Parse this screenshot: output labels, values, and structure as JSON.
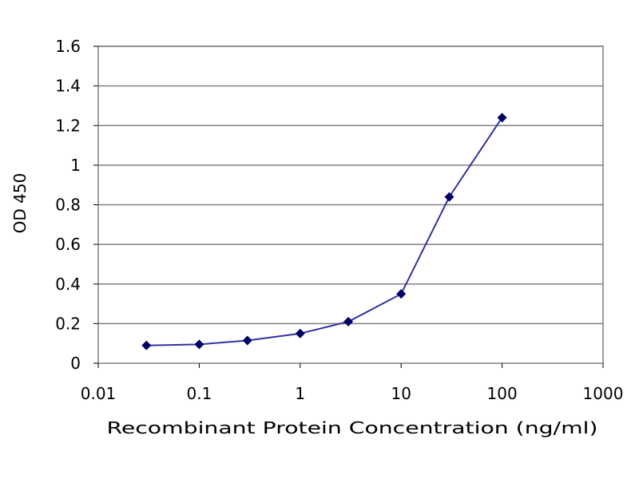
{
  "chart_data": {
    "type": "line",
    "xlabel": "Recombinant Protein Concentration (ng/ml)",
    "ylabel": "OD 450",
    "x_scale": "log",
    "xlim": [
      0.01,
      1000
    ],
    "ylim": [
      0,
      1.6
    ],
    "x_ticks": [
      0.01,
      0.1,
      1,
      10,
      100,
      1000
    ],
    "x_tick_labels": [
      "0.01",
      "0.1",
      "1",
      "10",
      "100",
      "1000"
    ],
    "y_ticks": [
      0,
      0.2,
      0.4,
      0.6,
      0.8,
      1,
      1.2,
      1.4,
      1.6
    ],
    "y_tick_labels": [
      "0",
      "0.2",
      "0.4",
      "0.6",
      "0.8",
      "1",
      "1.2",
      "1.4",
      "1.6"
    ],
    "grid": "horizontal",
    "legend": "none",
    "series": [
      {
        "x": [
          0.03,
          0.1,
          0.3,
          1,
          3,
          10,
          30,
          100
        ],
        "y": [
          0.09,
          0.095,
          0.115,
          0.15,
          0.21,
          0.35,
          0.84,
          1.24
        ],
        "color": "#3333a0",
        "marker": "diamond",
        "marker_color": "#000066"
      }
    ],
    "plot_area_border": "#808080",
    "gridline_color": "#808080"
  }
}
